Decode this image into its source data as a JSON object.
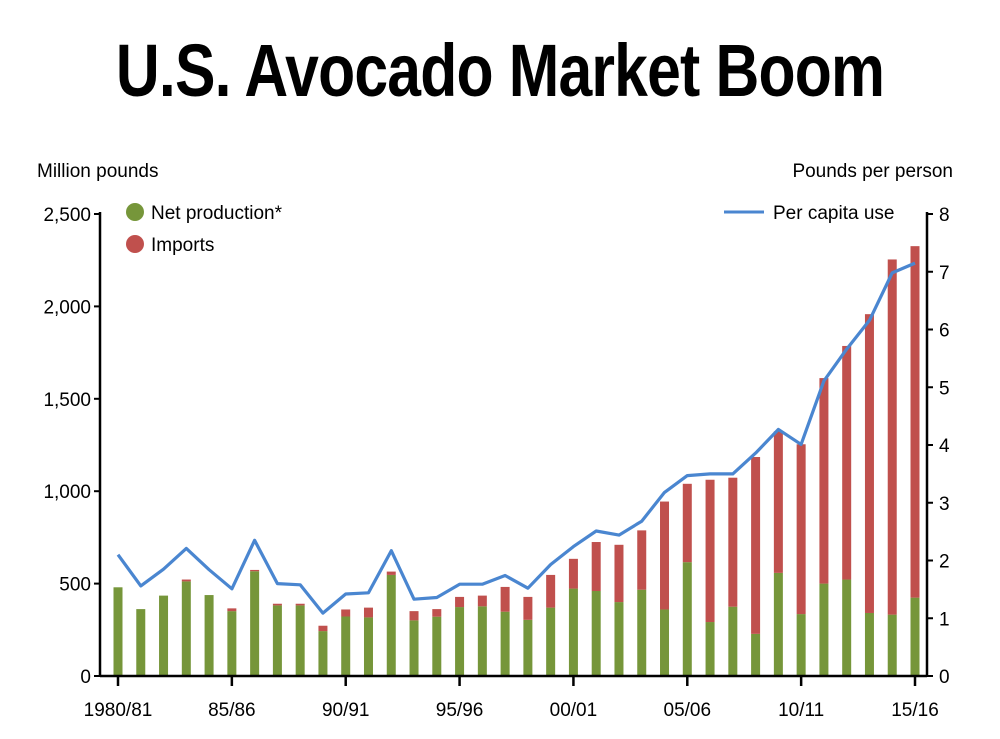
{
  "chart_data": {
    "type": "bar",
    "stacked": true,
    "title": "U.S. Avocado Market Boom",
    "ylabel_left": "Million pounds",
    "ylabel_right": "Pounds per person",
    "ylim_left": [
      0,
      2500
    ],
    "ylim_right": [
      0,
      8
    ],
    "yticks_left": [
      "0",
      "500",
      "1,000",
      "1,500",
      "2,000",
      "2,500"
    ],
    "yticks_right": [
      "0",
      "1",
      "2",
      "3",
      "4",
      "5",
      "6",
      "7",
      "8"
    ],
    "xtick_labels": [
      "1980/81",
      "85/86",
      "90/91",
      "95/96",
      "00/01",
      "05/06",
      "10/11",
      "15/16"
    ],
    "grid": false,
    "legend_placement": "top",
    "categories": [
      "1980/81",
      "81/82",
      "82/83",
      "83/84",
      "84/85",
      "85/86",
      "86/87",
      "87/88",
      "88/89",
      "89/90",
      "90/91",
      "91/92",
      "92/93",
      "93/94",
      "94/95",
      "95/96",
      "96/97",
      "97/98",
      "98/99",
      "99/00",
      "00/01",
      "01/02",
      "02/03",
      "03/04",
      "04/05",
      "05/06",
      "06/07",
      "07/08",
      "08/09",
      "09/10",
      "10/11",
      "11/12",
      "12/13",
      "13/14",
      "14/15",
      "15/16"
    ],
    "series": [
      {
        "name": "Net production*",
        "type": "bar",
        "axis": "left",
        "color": "#76963a",
        "values": [
          480,
          362,
          435,
          512,
          438,
          351,
          567,
          382,
          382,
          243,
          322,
          317,
          547,
          301,
          321,
          373,
          377,
          348,
          304,
          370,
          473,
          460,
          400,
          467,
          360,
          616,
          292,
          375,
          228,
          558,
          335,
          500,
          522,
          341,
          332,
          424
        ]
      },
      {
        "name": "Imports",
        "type": "bar",
        "axis": "left",
        "color": "#c0504d",
        "values": [
          0,
          0,
          0,
          10,
          0,
          15,
          7,
          9,
          9,
          29,
          38,
          53,
          18,
          50,
          41,
          55,
          58,
          134,
          124,
          177,
          161,
          265,
          310,
          321,
          584,
          424,
          770,
          698,
          957,
          766,
          919,
          1112,
          1264,
          1617,
          1922,
          1902
        ]
      },
      {
        "name": "Per capita use",
        "type": "line",
        "axis": "right",
        "color": "#4a86d0",
        "values": [
          2.1,
          1.56,
          1.85,
          2.21,
          1.84,
          1.51,
          2.35,
          1.6,
          1.58,
          1.09,
          1.42,
          1.44,
          2.17,
          1.33,
          1.36,
          1.59,
          1.59,
          1.74,
          1.52,
          1.93,
          2.24,
          2.51,
          2.44,
          2.68,
          3.18,
          3.47,
          3.5,
          3.5,
          3.86,
          4.27,
          4.01,
          5.11,
          5.66,
          6.16,
          6.98,
          7.15
        ]
      }
    ]
  }
}
